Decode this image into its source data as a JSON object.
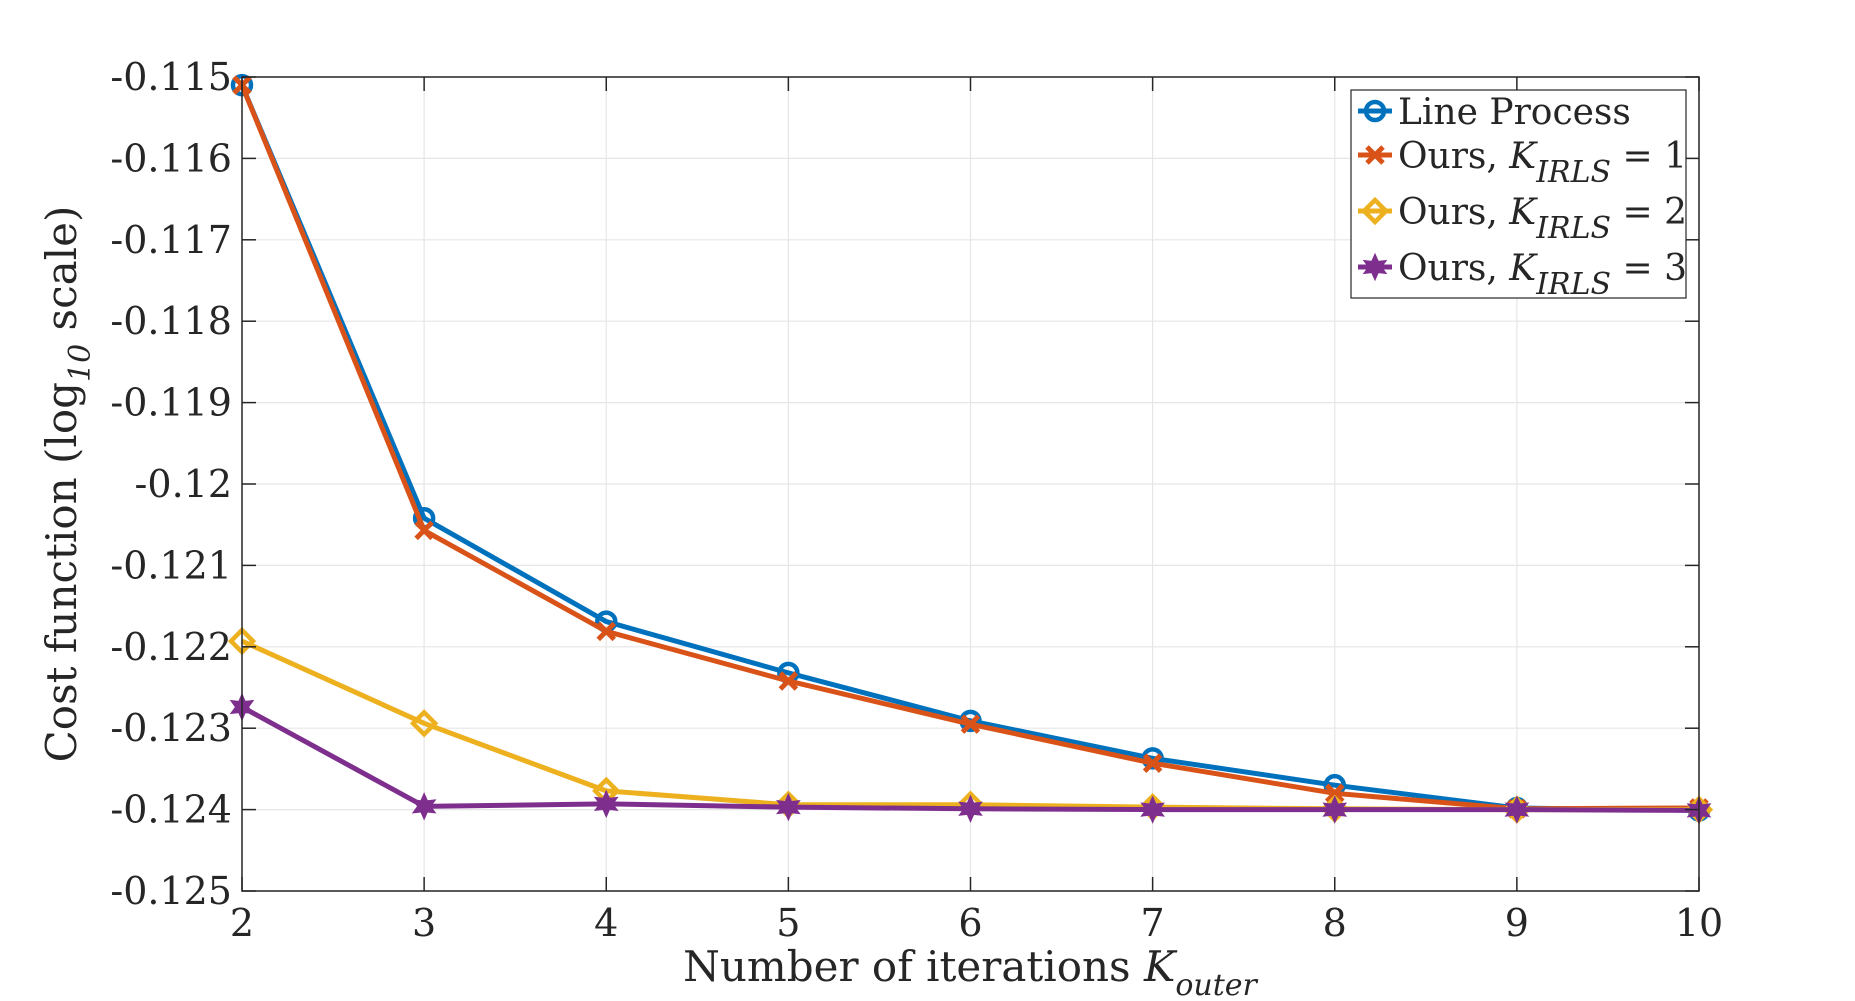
{
  "chart_data": {
    "type": "line",
    "xlabel": {
      "main": "Number of iterations ",
      "var": "K",
      "sub": "outer"
    },
    "ylabel": {
      "main": "Cost function (log",
      "sub": "10",
      "suffix": " scale)"
    },
    "x": [
      2,
      3,
      4,
      5,
      6,
      7,
      8,
      9,
      10
    ],
    "xlim": [
      2,
      10
    ],
    "ylim": [
      -0.125,
      -0.115
    ],
    "x_ticks": [
      2,
      3,
      4,
      5,
      6,
      7,
      8,
      9,
      10
    ],
    "x_tick_labels": [
      "2",
      "3",
      "4",
      "5",
      "6",
      "7",
      "8",
      "9",
      "10"
    ],
    "y_ticks": [
      -0.115,
      -0.116,
      -0.117,
      -0.118,
      -0.119,
      -0.12,
      -0.121,
      -0.122,
      -0.123,
      -0.124,
      -0.125
    ],
    "y_tick_labels": [
      "-0.115",
      "-0.116",
      "-0.117",
      "-0.118",
      "-0.119",
      "-0.12",
      "-0.121",
      "-0.122",
      "-0.123",
      "-0.124",
      "-0.125"
    ],
    "grid": true,
    "legend_position": "top-right",
    "series": [
      {
        "name": "Line Process",
        "legend": {
          "prefix": "Line Process",
          "var": "",
          "sub": "",
          "suffix": ""
        },
        "color": "#0072BD",
        "marker": "circle",
        "values": [
          -0.1151,
          -0.12042,
          -0.12169,
          -0.12232,
          -0.12291,
          -0.12337,
          -0.1237,
          -0.12398,
          -0.12401
        ]
      },
      {
        "name": "Ours, K_IRLS = 1",
        "legend": {
          "prefix": "Ours, ",
          "var": "K",
          "sub": "IRLS",
          "suffix": " = 1"
        },
        "color": "#D95319",
        "marker": "x",
        "values": [
          -0.1151,
          -0.12057,
          -0.12181,
          -0.12242,
          -0.12295,
          -0.12343,
          -0.1238,
          -0.12399,
          -0.12398
        ]
      },
      {
        "name": "Ours, K_IRLS = 2",
        "legend": {
          "prefix": "Ours, ",
          "var": "K",
          "sub": "IRLS",
          "suffix": " = 2"
        },
        "color": "#EDB120",
        "marker": "diamond",
        "values": [
          -0.12193,
          -0.12294,
          -0.12377,
          -0.12394,
          -0.12394,
          -0.12397,
          -0.12399,
          -0.124,
          -0.124
        ]
      },
      {
        "name": "Ours, K_IRLS = 3",
        "legend": {
          "prefix": "Ours, ",
          "var": "K",
          "sub": "IRLS",
          "suffix": " = 3"
        },
        "color": "#7E2F8E",
        "marker": "hexagram",
        "values": [
          -0.12274,
          -0.12396,
          -0.12393,
          -0.12397,
          -0.12399,
          -0.124,
          -0.124,
          -0.124,
          -0.12401
        ]
      }
    ]
  }
}
